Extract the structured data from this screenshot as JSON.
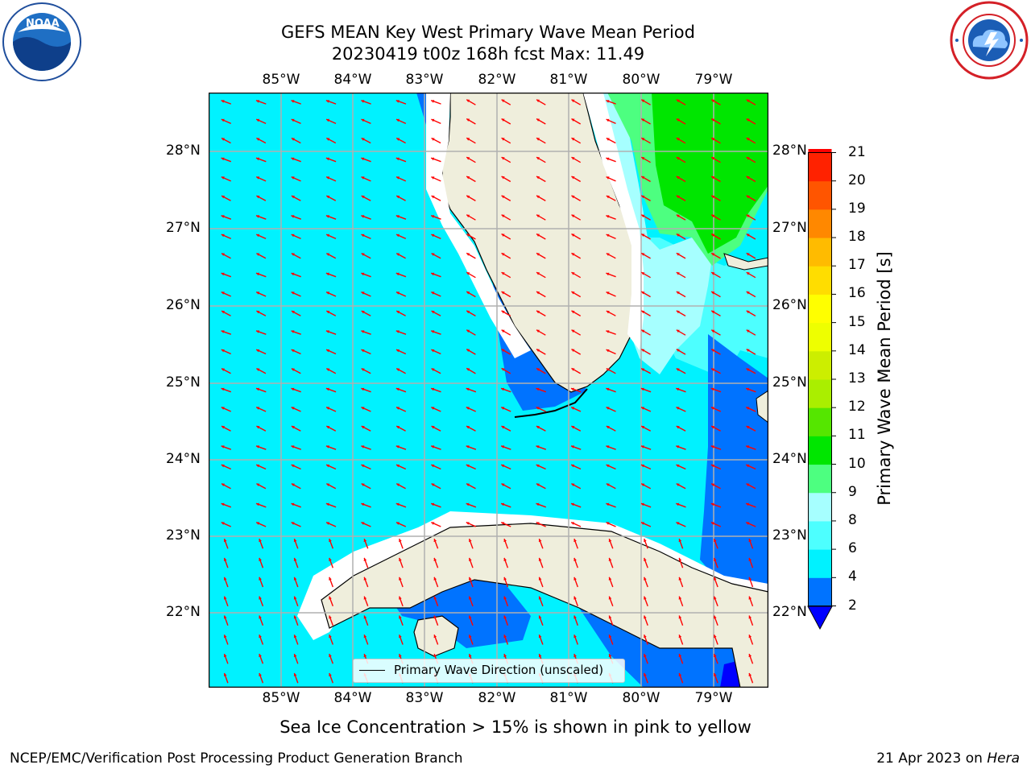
{
  "title_line1": "GEFS MEAN Key West Primary Wave Mean Period",
  "title_line2": "20230419 t00z 168h fcst   Max: 11.49",
  "lon_labels": [
    "85°W",
    "84°W",
    "83°W",
    "82°W",
    "81°W",
    "80°W",
    "79°W"
  ],
  "lat_labels": [
    "28°N",
    "27°N",
    "26°N",
    "25°N",
    "24°N",
    "23°N",
    "22°N"
  ],
  "colorbar": {
    "label": "Primary Wave Mean Period [s]",
    "ticks": [
      "2",
      "4",
      "6",
      "8",
      "9",
      "10",
      "11",
      "12",
      "13",
      "14",
      "15",
      "16",
      "17",
      "18",
      "19",
      "20",
      "21"
    ],
    "colors": [
      "#0073ff",
      "#00f2ff",
      "#4dffff",
      "#a6ffff",
      "#4dff80",
      "#00e600",
      "#55e600",
      "#aaee00",
      "#ccee00",
      "#eeff00",
      "#ffff00",
      "#ffdd00",
      "#ffbb00",
      "#ff8800",
      "#ff5500",
      "#ff2200",
      "#ff0000"
    ],
    "extend_color": "#0000ff"
  },
  "legend_label": "Primary Wave Direction (unscaled)",
  "caption": "Sea Ice Concentration > 15% is shown in pink to yellow",
  "footer_left": "NCEP/EMC/Verification Post Processing Product Generation Branch",
  "footer_right_date": "21 Apr 2023 on ",
  "footer_right_host": "Hera",
  "noaa_text": "NOAA",
  "colors": {
    "ocean": "#00f2ff",
    "land": "#efeedc",
    "arrow": "#ff0000",
    "grid": "#b0b0b0"
  }
}
